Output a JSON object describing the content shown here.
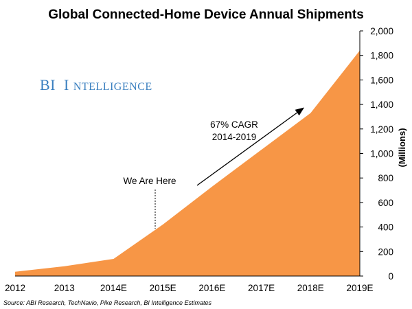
{
  "chart_data": {
    "type": "area",
    "title": "Global Connected-Home Device Annual Shipments",
    "ylabel": "(Millions)",
    "xlabel": "",
    "categories": [
      "2012",
      "2013",
      "2014E",
      "2015E",
      "2016E",
      "2017E",
      "2018E",
      "2019E"
    ],
    "values": [
      35,
      80,
      140,
      420,
      730,
      1030,
      1330,
      1840
    ],
    "ylim": [
      0,
      2000
    ],
    "ytick_values": [
      0,
      200,
      400,
      600,
      800,
      1000,
      1200,
      1400,
      1600,
      1800,
      2000
    ],
    "ytick_labels": [
      "0",
      "200",
      "400",
      "600",
      "800",
      "1,000",
      "1,200",
      "1,400",
      "1,600",
      "1,800",
      "2,000"
    ],
    "y_axis_side": "right",
    "grid": false,
    "legend": "none",
    "fill_color": "#f79646",
    "annotations": {
      "marker_label": "We Are Here",
      "cagr_line1": "67% CAGR",
      "cagr_line2": "2014-2019"
    }
  },
  "brand": {
    "text_big_1": "BI",
    "text_big_2": "I",
    "text_small": "NTELLIGENCE",
    "color": "#3a7fbf"
  },
  "source": "Source: ABI Research, TechNavio, Pike Research, BI Intelligence Estimates"
}
